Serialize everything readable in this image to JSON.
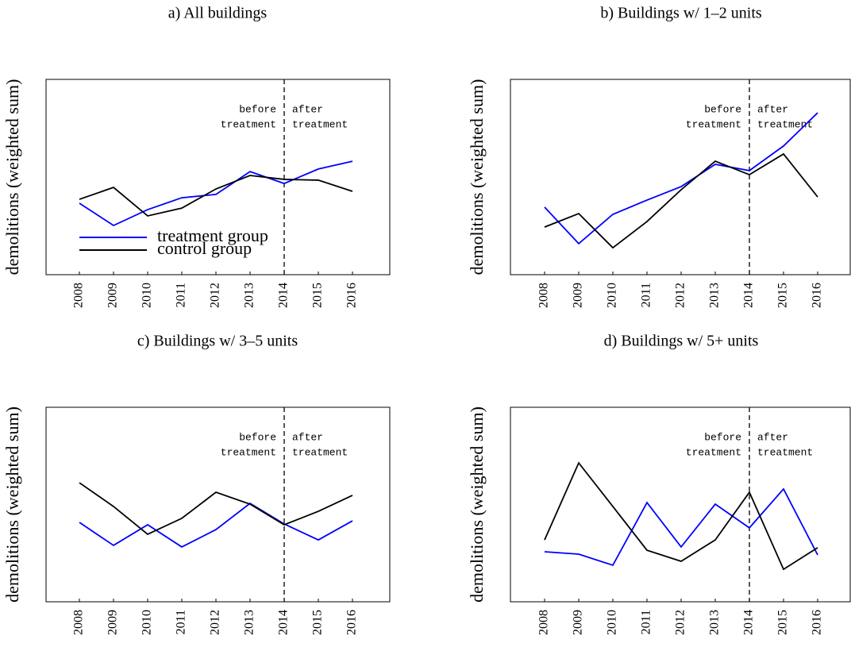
{
  "chart_data": [
    {
      "type": "line",
      "title": "a) All buildings",
      "y_label": "demolitions (weighted sum)",
      "categories": [
        "2008",
        "2009",
        "2010",
        "2011",
        "2012",
        "2013",
        "2014",
        "2015",
        "2016"
      ],
      "ylim": [
        0,
        100
      ],
      "vline": "2014",
      "before_label": [
        "before",
        "treatment"
      ],
      "after_label": [
        "after",
        "treatment"
      ],
      "legend": "lower left",
      "series": [
        {
          "name": "treatment group",
          "color": "#0000ff",
          "values": [
            36.6,
            25.2,
            33.3,
            39.4,
            41.1,
            52.8,
            46.7,
            54.1,
            58.1
          ]
        },
        {
          "name": "control group",
          "color": "#000000",
          "values": [
            38.6,
            44.7,
            30.1,
            34.1,
            43.9,
            50.8,
            48.8,
            48.4,
            42.7
          ]
        }
      ]
    },
    {
      "type": "line",
      "title": "b) Buildings w/ 1–2 units",
      "y_label": "demolitions (weighted sum)",
      "categories": [
        "2008",
        "2009",
        "2010",
        "2011",
        "2012",
        "2013",
        "2014",
        "2015",
        "2016"
      ],
      "ylim": [
        0,
        100
      ],
      "vline": "2014",
      "before_label": [
        "before",
        "treatment"
      ],
      "after_label": [
        "after",
        "treatment"
      ],
      "series": [
        {
          "color": "#0000ff",
          "values": [
            34.6,
            15.9,
            30.9,
            38.2,
            45.1,
            56.5,
            53.3,
            65.9,
            82.9
          ]
        },
        {
          "color": "#000000",
          "values": [
            24.4,
            31.3,
            13.8,
            27.2,
            43.5,
            58.1,
            51.2,
            61.8,
            39.8
          ]
        }
      ]
    },
    {
      "type": "line",
      "title": "c) Buildings w/ 3–5 units",
      "y_label": "demolitions (weighted sum)",
      "categories": [
        "2008",
        "2009",
        "2010",
        "2011",
        "2012",
        "2013",
        "2014",
        "2015",
        "2016"
      ],
      "ylim": [
        0,
        100
      ],
      "vline": "2014",
      "before_label": [
        "before",
        "treatment"
      ],
      "after_label": [
        "after",
        "treatment"
      ],
      "series": [
        {
          "color": "#0000ff",
          "values": [
            40.8,
            29.0,
            39.6,
            28.2,
            37.1,
            50.6,
            40.0,
            31.8,
            41.6
          ]
        },
        {
          "color": "#000000",
          "values": [
            61.2,
            49.0,
            34.7,
            42.9,
            56.3,
            50.2,
            39.6,
            46.5,
            54.7
          ]
        }
      ]
    },
    {
      "type": "line",
      "title": "d) Buildings w/ 5+ units",
      "y_label": "demolitions (weighted sum)",
      "categories": [
        "2008",
        "2009",
        "2010",
        "2011",
        "2012",
        "2013",
        "2014",
        "2015",
        "2016"
      ],
      "ylim": [
        0,
        100
      ],
      "vline": "2014",
      "before_label": [
        "before",
        "treatment"
      ],
      "after_label": [
        "after",
        "treatment"
      ],
      "series": [
        {
          "color": "#0000ff",
          "values": [
            25.7,
            24.5,
            18.8,
            51.0,
            28.2,
            50.2,
            38.0,
            58.0,
            24.1
          ]
        },
        {
          "color": "#000000",
          "values": [
            31.8,
            71.4,
            49.0,
            26.5,
            20.8,
            31.8,
            56.3,
            16.7,
            27.8
          ]
        }
      ]
    }
  ]
}
